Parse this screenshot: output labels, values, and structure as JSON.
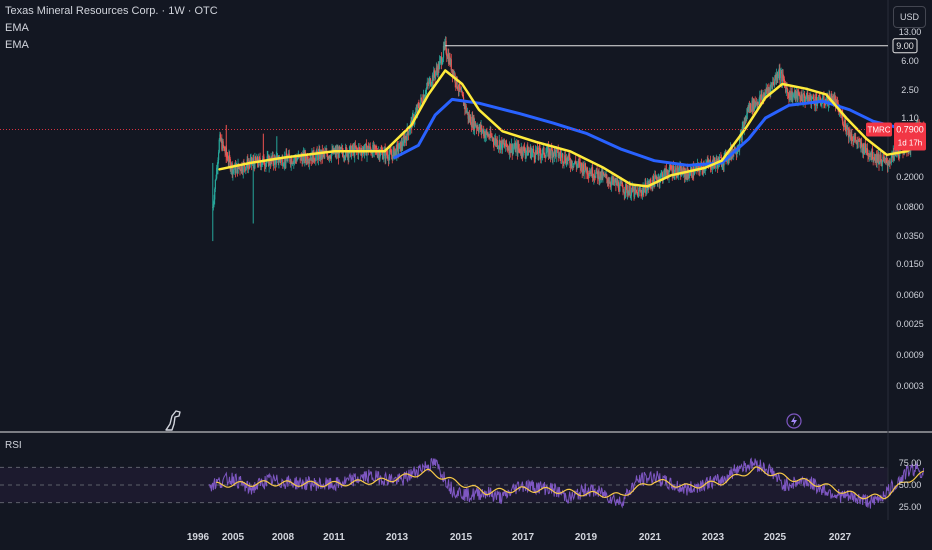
{
  "header": {
    "title": "Texas Mineral Resources Corp. · 1W · OTC",
    "ema1": "EMA",
    "ema2": "EMA"
  },
  "currency_button": "USD",
  "rsi_panel": {
    "label": "RSI",
    "levels": [
      "75.00",
      "50.00",
      "25.00"
    ]
  },
  "colors": {
    "background": "#131722",
    "up": "#26a69a",
    "down": "#ef5350",
    "ema_fast": "#ffeb3b",
    "ema_slow": "#2962ff",
    "rsi": "#7e57c2",
    "rsi_ma": "#f7c948",
    "price_line": "#f23645"
  },
  "icons": {
    "logo": "tradingview-dino-icon",
    "alert": "lightning-bolt-icon"
  },
  "chart_data": {
    "type": "candlestick",
    "symbol": "TMRC",
    "last_price": "0.7900",
    "countdown": "1d 17h",
    "high_marker": "9.00",
    "y_scale": "log",
    "y_ticks": [
      "13.00",
      "6.00",
      "2.50",
      "1.10",
      "0.2000",
      "0.0800",
      "0.0350",
      "0.0150",
      "0.0060",
      "0.0025",
      "0.0009",
      "0.0003"
    ],
    "x_ticks": [
      "1996",
      "2005",
      "2008",
      "2011",
      "2013",
      "2015",
      "2017",
      "2019",
      "2021",
      "2023",
      "2025",
      "2027"
    ],
    "price_path": [
      [
        2004.4,
        0.08
      ],
      [
        2004.6,
        0.6
      ],
      [
        2005.0,
        0.25
      ],
      [
        2005.5,
        0.3
      ],
      [
        2006.0,
        0.32
      ],
      [
        2007.0,
        0.35
      ],
      [
        2008.0,
        0.4
      ],
      [
        2009.0,
        0.45
      ],
      [
        2009.7,
        0.38
      ],
      [
        2010.0,
        0.5
      ],
      [
        2010.4,
        1.2
      ],
      [
        2010.8,
        3.0
      ],
      [
        2011.1,
        5.0
      ],
      [
        2011.3,
        9.0
      ],
      [
        2011.6,
        3.5
      ],
      [
        2012.0,
        1.1
      ],
      [
        2012.5,
        0.7
      ],
      [
        2013.0,
        0.5
      ],
      [
        2013.5,
        0.45
      ],
      [
        2014.0,
        0.4
      ],
      [
        2014.5,
        0.42
      ],
      [
        2015.0,
        0.32
      ],
      [
        2015.5,
        0.25
      ],
      [
        2016.0,
        0.2
      ],
      [
        2016.5,
        0.15
      ],
      [
        2017.0,
        0.12
      ],
      [
        2017.5,
        0.18
      ],
      [
        2018.0,
        0.25
      ],
      [
        2018.5,
        0.22
      ],
      [
        2019.0,
        0.28
      ],
      [
        2019.5,
        0.32
      ],
      [
        2020.0,
        0.5
      ],
      [
        2020.3,
        1.5
      ],
      [
        2020.7,
        2.0
      ],
      [
        2021.0,
        3.0
      ],
      [
        2021.2,
        4.5
      ],
      [
        2021.5,
        2.2
      ],
      [
        2022.0,
        2.0
      ],
      [
        2022.5,
        1.8
      ],
      [
        2022.8,
        2.0
      ],
      [
        2023.0,
        1.3
      ],
      [
        2023.3,
        0.7
      ],
      [
        2023.6,
        0.5
      ],
      [
        2024.0,
        0.38
      ],
      [
        2024.4,
        0.3
      ],
      [
        2024.8,
        0.45
      ],
      [
        2025.1,
        0.5
      ],
      [
        2025.3,
        0.9
      ],
      [
        2025.5,
        0.79
      ]
    ],
    "ema_fast": [
      [
        2004.6,
        0.25
      ],
      [
        2005.5,
        0.3
      ],
      [
        2006.5,
        0.35
      ],
      [
        2008.0,
        0.42
      ],
      [
        2009.5,
        0.42
      ],
      [
        2010.3,
        0.9
      ],
      [
        2010.8,
        2.2
      ],
      [
        2011.3,
        4.5
      ],
      [
        2011.8,
        3.0
      ],
      [
        2012.3,
        1.4
      ],
      [
        2013.0,
        0.75
      ],
      [
        2014.0,
        0.55
      ],
      [
        2015.0,
        0.42
      ],
      [
        2016.0,
        0.26
      ],
      [
        2016.8,
        0.16
      ],
      [
        2017.3,
        0.15
      ],
      [
        2018.0,
        0.21
      ],
      [
        2019.0,
        0.26
      ],
      [
        2019.5,
        0.32
      ],
      [
        2020.2,
        0.8
      ],
      [
        2020.8,
        2.0
      ],
      [
        2021.3,
        3.0
      ],
      [
        2022.0,
        2.6
      ],
      [
        2022.6,
        2.2
      ],
      [
        2023.2,
        1.1
      ],
      [
        2023.8,
        0.6
      ],
      [
        2024.4,
        0.38
      ],
      [
        2025.0,
        0.42
      ],
      [
        2025.5,
        0.58
      ]
    ],
    "ema_slow": [
      [
        2009.8,
        0.35
      ],
      [
        2010.5,
        0.5
      ],
      [
        2011.0,
        1.2
      ],
      [
        2011.5,
        1.9
      ],
      [
        2012.3,
        1.7
      ],
      [
        2013.5,
        1.25
      ],
      [
        2014.5,
        0.95
      ],
      [
        2015.5,
        0.7
      ],
      [
        2016.5,
        0.45
      ],
      [
        2017.5,
        0.32
      ],
      [
        2018.5,
        0.28
      ],
      [
        2019.5,
        0.3
      ],
      [
        2020.3,
        0.6
      ],
      [
        2020.8,
        1.1
      ],
      [
        2021.5,
        1.6
      ],
      [
        2022.5,
        1.8
      ],
      [
        2023.3,
        1.4
      ],
      [
        2024.0,
        1.0
      ],
      [
        2024.8,
        0.82
      ],
      [
        2025.5,
        0.8
      ]
    ],
    "rsi": [
      [
        2004.3,
        50
      ],
      [
        2005.0,
        58
      ],
      [
        2005.5,
        45
      ],
      [
        2006.0,
        55
      ],
      [
        2007.0,
        52
      ],
      [
        2008.0,
        50
      ],
      [
        2009.0,
        60
      ],
      [
        2010.0,
        55
      ],
      [
        2010.6,
        70
      ],
      [
        2011.0,
        75
      ],
      [
        2011.5,
        45
      ],
      [
        2012.0,
        38
      ],
      [
        2012.5,
        42
      ],
      [
        2013.0,
        35
      ],
      [
        2013.5,
        50
      ],
      [
        2014.0,
        48
      ],
      [
        2014.5,
        45
      ],
      [
        2015.0,
        35
      ],
      [
        2015.5,
        45
      ],
      [
        2016.0,
        40
      ],
      [
        2016.5,
        30
      ],
      [
        2017.0,
        55
      ],
      [
        2017.5,
        60
      ],
      [
        2018.0,
        50
      ],
      [
        2018.5,
        45
      ],
      [
        2019.0,
        52
      ],
      [
        2019.5,
        55
      ],
      [
        2020.0,
        70
      ],
      [
        2020.5,
        75
      ],
      [
        2021.0,
        65
      ],
      [
        2021.3,
        50
      ],
      [
        2022.0,
        55
      ],
      [
        2022.5,
        45
      ],
      [
        2023.0,
        38
      ],
      [
        2023.5,
        35
      ],
      [
        2024.0,
        30
      ],
      [
        2024.5,
        45
      ],
      [
        2025.0,
        65
      ],
      [
        2025.3,
        70
      ],
      [
        2025.5,
        62
      ]
    ],
    "rsi_ma": [
      [
        2004.5,
        50
      ],
      [
        2006.0,
        52
      ],
      [
        2008.0,
        51
      ],
      [
        2009.5,
        55
      ],
      [
        2010.8,
        65
      ],
      [
        2011.5,
        55
      ],
      [
        2012.5,
        42
      ],
      [
        2013.5,
        45
      ],
      [
        2014.5,
        44
      ],
      [
        2015.5,
        40
      ],
      [
        2016.5,
        38
      ],
      [
        2017.5,
        55
      ],
      [
        2018.5,
        48
      ],
      [
        2019.5,
        53
      ],
      [
        2020.5,
        68
      ],
      [
        2021.5,
        58
      ],
      [
        2022.5,
        50
      ],
      [
        2023.5,
        38
      ],
      [
        2024.3,
        36
      ],
      [
        2025.0,
        55
      ],
      [
        2025.5,
        63
      ]
    ]
  }
}
